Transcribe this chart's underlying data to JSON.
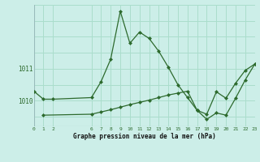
{
  "bg_color": "#cceee8",
  "grid_color_major": "#aaddcc",
  "grid_color_minor": "#bbeeee",
  "line_color": "#2d6a2d",
  "xlabel": "Graphe pression niveau de la mer (hPa)",
  "xlim": [
    0,
    23
  ],
  "ylim": [
    1009.2,
    1013.0
  ],
  "yticks": [
    1010,
    1011
  ],
  "xticks": [
    0,
    1,
    2,
    6,
    7,
    8,
    9,
    10,
    11,
    12,
    13,
    14,
    15,
    16,
    17,
    18,
    19,
    20,
    21,
    22,
    23
  ],
  "line1_x": [
    0,
    1,
    2,
    6,
    7,
    8,
    9,
    10,
    11,
    12,
    13,
    14,
    15,
    16,
    17
  ],
  "line1_y": [
    1010.3,
    1010.05,
    1010.05,
    1010.1,
    1010.6,
    1011.3,
    1012.8,
    1011.8,
    1012.15,
    1011.95,
    1011.55,
    1011.05,
    1010.5,
    1010.1,
    1009.7
  ],
  "line2_x": [
    1,
    6,
    7,
    8,
    9,
    10,
    11,
    12,
    13,
    14,
    15,
    16,
    17,
    18,
    19,
    20,
    21,
    22,
    23
  ],
  "line2_y": [
    1009.55,
    1009.58,
    1009.65,
    1009.72,
    1009.8,
    1009.88,
    1009.95,
    1010.02,
    1010.1,
    1010.18,
    1010.24,
    1010.3,
    1009.7,
    1009.58,
    1010.28,
    1010.08,
    1010.55,
    1010.95,
    1011.15
  ],
  "line3_x": [
    17,
    18,
    19,
    20,
    21,
    22,
    23
  ],
  "line3_y": [
    1009.7,
    1009.42,
    1009.62,
    1009.55,
    1010.08,
    1010.65,
    1011.15
  ]
}
